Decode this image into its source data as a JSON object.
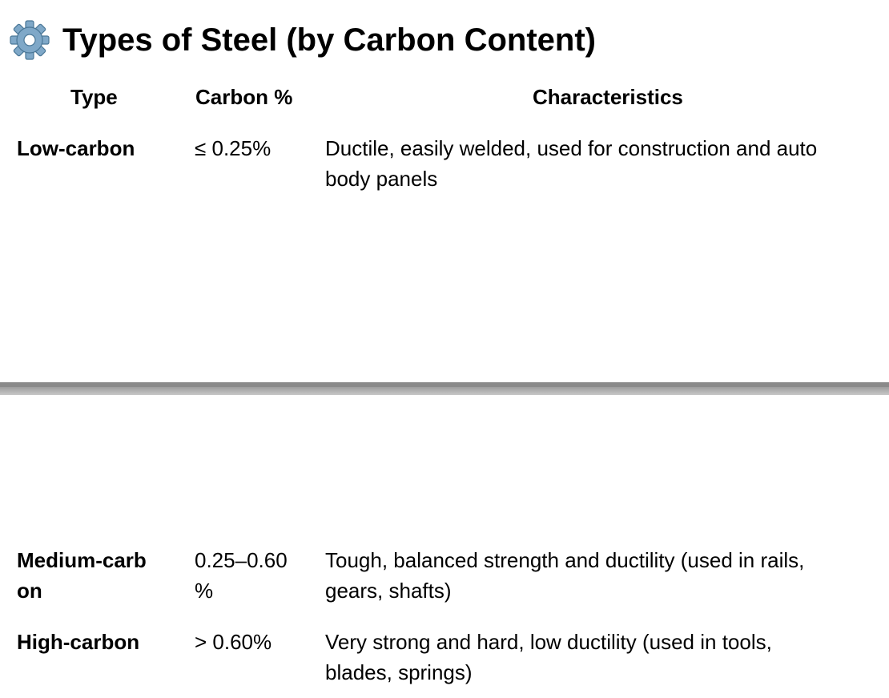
{
  "title": {
    "icon": "gear-icon",
    "text": "Types of Steel (by Carbon Content)"
  },
  "table": {
    "headers": {
      "type": "Type",
      "carbon": "Carbon %",
      "characteristics": "Characteristics"
    },
    "rows": [
      {
        "type": "Low-carbon",
        "carbon": "≤ 0.25%",
        "characteristics_lines": [
          "Ductile, easily welded, used for construction and auto",
          "body panels"
        ]
      },
      {
        "type_lines": [
          "Medium-carb",
          "on"
        ],
        "carbon_lines": [
          "0.25–0.60",
          "%"
        ],
        "characteristics_lines": [
          "Tough, balanced strength and ductility (used in rails,",
          "gears, shafts)"
        ]
      },
      {
        "type": "High-carbon",
        "carbon": "> 0.60%",
        "characteristics_lines": [
          "Very strong and hard, low ductility (used in tools,",
          "blades, springs)"
        ]
      }
    ]
  },
  "colors": {
    "divider": "#8a8a8a",
    "gear": "#5b8fb9"
  }
}
